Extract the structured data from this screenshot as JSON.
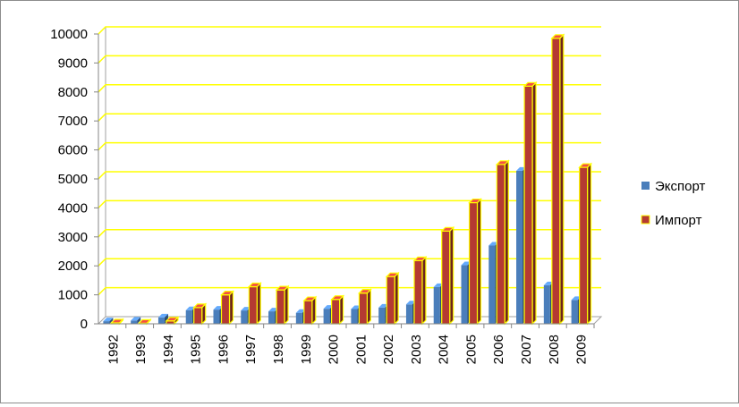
{
  "chart_data": {
    "type": "bar",
    "categories": [
      "1992",
      "1993",
      "1994",
      "1995",
      "1996",
      "1997",
      "1998",
      "1999",
      "2000",
      "2001",
      "2002",
      "2003",
      "2004",
      "2005",
      "2006",
      "2007",
      "2008",
      "2009"
    ],
    "series": [
      {
        "name": "Экспорт",
        "color": "#4a7ebb",
        "values": [
          90,
          110,
          220,
          470,
          490,
          460,
          430,
          380,
          520,
          510,
          560,
          670,
          1270,
          2020,
          2700,
          5280,
          1330,
          820
        ]
      },
      {
        "name": "Импорт",
        "color": "#b53a32",
        "values": [
          30,
          20,
          100,
          560,
          1000,
          1280,
          1170,
          800,
          840,
          1060,
          1630,
          2180,
          3200,
          4180,
          5500,
          8200,
          9850,
          5400
        ]
      }
    ],
    "yticks": [
      "0",
      "1000",
      "2000",
      "3000",
      "4000",
      "5000",
      "6000",
      "7000",
      "8000",
      "9000",
      "10000"
    ],
    "ylim": [
      0,
      10000
    ],
    "title": "",
    "xlabel": "",
    "ylabel": "",
    "grid": true,
    "grid_color": "#ffff00",
    "bar_outline_color": "#ffff00",
    "legend_position": "right"
  }
}
